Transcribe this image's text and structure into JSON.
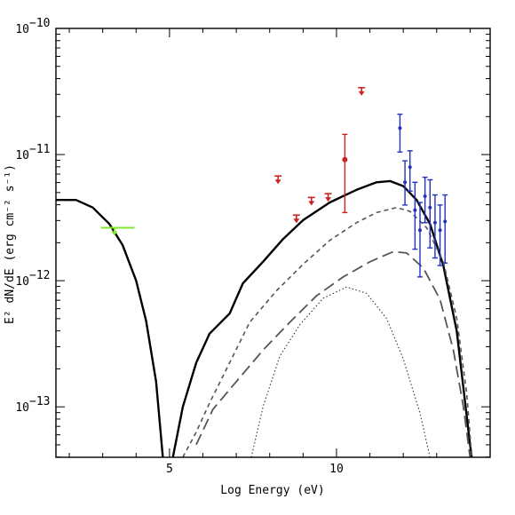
{
  "chart_data": {
    "type": "scatter",
    "title": "",
    "xlabel": "Log Energy (eV)",
    "ylabel": "E² dN/dE (erg cm⁻² s⁻¹)",
    "xlim": [
      1.6,
      14.6
    ],
    "ylim_log10": [
      -13.4,
      -10.0
    ],
    "y_scale": "log",
    "grid": false,
    "x_ticks": [
      {
        "value": 5,
        "label": "5"
      },
      {
        "value": 10,
        "label": "10"
      }
    ],
    "y_ticks": [
      {
        "exp": -10,
        "label": "10",
        "sup": "−10"
      },
      {
        "exp": -11,
        "label": "10",
        "sup": "−11"
      },
      {
        "exp": -12,
        "label": "10",
        "sup": "−12"
      },
      {
        "exp": -13,
        "label": "10",
        "sup": "−13"
      }
    ],
    "series": [
      {
        "style": "solid",
        "color": "#000000",
        "kind": "line",
        "segments": [
          [
            [
              1.6,
              -11.36
            ],
            [
              2.2,
              -11.36
            ],
            [
              2.7,
              -11.42
            ],
            [
              3.2,
              -11.55
            ],
            [
              3.6,
              -11.72
            ],
            [
              4.0,
              -12.0
            ],
            [
              4.3,
              -12.32
            ],
            [
              4.6,
              -12.8
            ],
            [
              4.8,
              -13.4
            ]
          ],
          [
            [
              5.1,
              -13.4
            ],
            [
              5.4,
              -13.0
            ],
            [
              5.8,
              -12.65
            ],
            [
              6.2,
              -12.42
            ],
            [
              6.8,
              -12.26
            ],
            [
              7.2,
              -12.02
            ],
            [
              7.8,
              -11.85
            ],
            [
              8.4,
              -11.67
            ],
            [
              9.0,
              -11.52
            ],
            [
              9.8,
              -11.38
            ],
            [
              10.6,
              -11.28
            ],
            [
              11.2,
              -11.22
            ],
            [
              11.6,
              -11.21
            ],
            [
              12.0,
              -11.25
            ],
            [
              12.4,
              -11.36
            ],
            [
              12.8,
              -11.55
            ],
            [
              13.2,
              -11.88
            ],
            [
              13.6,
              -12.4
            ],
            [
              14.0,
              -13.3
            ],
            [
              14.05,
              -13.4
            ]
          ]
        ]
      },
      {
        "style": "short-dash",
        "color": "#555555",
        "kind": "line",
        "segments": [
          [
            [
              5.4,
              -13.4
            ],
            [
              5.8,
              -13.2
            ],
            [
              6.2,
              -12.97
            ],
            [
              6.8,
              -12.65
            ],
            [
              7.4,
              -12.33
            ],
            [
              8.2,
              -12.08
            ],
            [
              9.0,
              -11.87
            ],
            [
              9.8,
              -11.68
            ],
            [
              10.6,
              -11.54
            ],
            [
              11.2,
              -11.46
            ],
            [
              11.8,
              -11.42
            ],
            [
              12.2,
              -11.45
            ],
            [
              12.7,
              -11.58
            ],
            [
              13.2,
              -11.85
            ],
            [
              13.6,
              -12.3
            ],
            [
              13.9,
              -12.9
            ],
            [
              14.05,
              -13.4
            ]
          ]
        ]
      },
      {
        "style": "long-dash",
        "color": "#555555",
        "kind": "line",
        "segments": [
          [
            [
              5.8,
              -13.3
            ],
            [
              6.3,
              -13.02
            ],
            [
              7.0,
              -12.8
            ],
            [
              7.8,
              -12.55
            ],
            [
              8.6,
              -12.33
            ],
            [
              9.4,
              -12.12
            ],
            [
              10.2,
              -11.97
            ],
            [
              11.0,
              -11.85
            ],
            [
              11.7,
              -11.77
            ],
            [
              12.1,
              -11.78
            ],
            [
              12.6,
              -11.9
            ],
            [
              13.1,
              -12.15
            ],
            [
              13.5,
              -12.55
            ],
            [
              13.8,
              -13.0
            ],
            [
              14.0,
              -13.4
            ]
          ]
        ]
      },
      {
        "style": "dotted",
        "color": "#333333",
        "kind": "line",
        "segments": [
          [
            [
              7.45,
              -13.4
            ],
            [
              7.8,
              -13.0
            ],
            [
              8.3,
              -12.6
            ],
            [
              8.9,
              -12.35
            ],
            [
              9.6,
              -12.14
            ],
            [
              10.3,
              -12.05
            ],
            [
              10.9,
              -12.1
            ],
            [
              11.5,
              -12.3
            ],
            [
              12.0,
              -12.62
            ],
            [
              12.5,
              -13.05
            ],
            [
              12.8,
              -13.4
            ]
          ]
        ]
      }
    ],
    "upper_limits": [
      {
        "color": "#7fe82a",
        "points": [
          {
            "x": 3.35,
            "y": -11.58
          }
        ],
        "bar": [
          2.95,
          3.95
        ]
      },
      {
        "color": "#cc2222",
        "points": [
          {
            "x": 8.25,
            "y": -11.17
          },
          {
            "x": 8.8,
            "y": -11.48
          },
          {
            "x": 9.25,
            "y": -11.34
          },
          {
            "x": 9.75,
            "y": -11.31
          },
          {
            "x": 10.75,
            "y": -10.47
          }
        ]
      }
    ],
    "error_points": [
      {
        "color": "#cc2222",
        "x": 10.25,
        "y": -11.04,
        "lo": -11.46,
        "hi": -10.84
      },
      {
        "color": "#2233bb",
        "x": 11.9,
        "y": -10.79,
        "lo": -10.98,
        "hi": -10.68
      },
      {
        "color": "#2233bb",
        "x": 12.05,
        "y": -11.22,
        "lo": -11.4,
        "hi": -11.05
      },
      {
        "color": "#2233bb",
        "x": 12.2,
        "y": -11.1,
        "lo": -11.29,
        "hi": -10.97
      },
      {
        "color": "#2233bb",
        "x": 12.35,
        "y": -11.44,
        "lo": -11.75,
        "hi": -11.22
      },
      {
        "color": "#2233bb",
        "x": 12.5,
        "y": -11.6,
        "lo": -11.97,
        "hi": -11.38
      },
      {
        "color": "#2233bb",
        "x": 12.65,
        "y": -11.33,
        "lo": -11.54,
        "hi": -11.18
      },
      {
        "color": "#2233bb",
        "x": 12.8,
        "y": -11.42,
        "lo": -11.74,
        "hi": -11.2
      },
      {
        "color": "#2233bb",
        "x": 12.95,
        "y": -11.54,
        "lo": -11.82,
        "hi": -11.32
      },
      {
        "color": "#2233bb",
        "x": 13.1,
        "y": -11.6,
        "lo": -11.88,
        "hi": -11.4
      },
      {
        "color": "#2233bb",
        "x": 13.25,
        "y": -11.53,
        "lo": -11.86,
        "hi": -11.32
      }
    ]
  }
}
